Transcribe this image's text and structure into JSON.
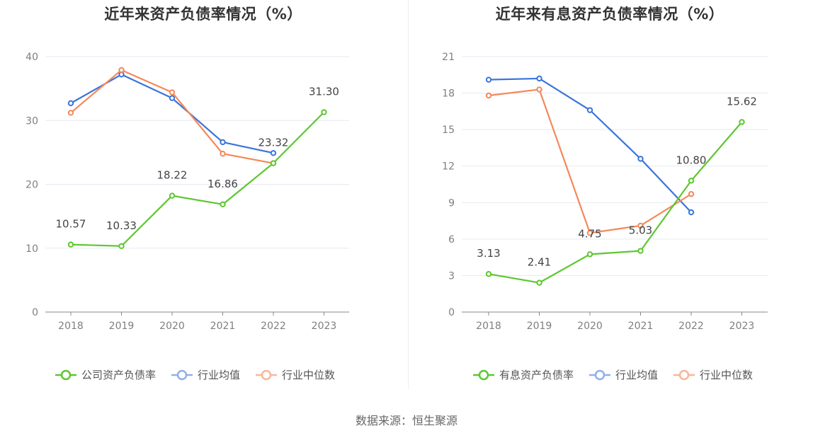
{
  "source_text": "数据来源：恒生聚源",
  "chart_data": [
    {
      "type": "line",
      "title": "近年来资产负债率情况（%）",
      "x": [
        "2018",
        "2019",
        "2020",
        "2021",
        "2022",
        "2023"
      ],
      "ylim": [
        0,
        40
      ],
      "yticks": [
        "0",
        "10",
        "20",
        "30",
        "40"
      ],
      "grid": true,
      "legend": "bottom",
      "series": [
        {
          "name": "公司资产负债率",
          "color": "#5cc72f",
          "values": [
            10.57,
            10.33,
            18.22,
            16.86,
            23.32,
            31.3
          ],
          "labels": [
            "10.57",
            "10.33",
            "18.22",
            "16.86",
            "23.32",
            "31.30"
          ]
        },
        {
          "name": "行业均值",
          "color": "#3a74da",
          "values": [
            32.7,
            37.2,
            33.5,
            26.6,
            24.9,
            null
          ]
        },
        {
          "name": "行业中位数",
          "color": "#f5885a",
          "values": [
            31.2,
            37.9,
            34.4,
            24.8,
            23.3,
            null
          ]
        }
      ]
    },
    {
      "type": "line",
      "title": "近年来有息资产负债率情况（%）",
      "x": [
        "2018",
        "2019",
        "2020",
        "2021",
        "2022",
        "2023"
      ],
      "ylim": [
        0,
        21
      ],
      "yticks": [
        "0",
        "3",
        "6",
        "9",
        "12",
        "15",
        "18",
        "21"
      ],
      "grid": true,
      "legend": "bottom",
      "series": [
        {
          "name": "有息资产负债率",
          "color": "#5cc72f",
          "values": [
            3.13,
            2.41,
            4.75,
            5.03,
            10.8,
            15.62
          ],
          "labels": [
            "3.13",
            "2.41",
            "4.75",
            "5.03",
            "10.80",
            "15.62"
          ]
        },
        {
          "name": "行业均值",
          "color": "#3a74da",
          "values": [
            19.1,
            19.2,
            16.6,
            12.6,
            8.2,
            null
          ]
        },
        {
          "name": "行业中位数",
          "color": "#f5885a",
          "values": [
            17.8,
            18.3,
            6.5,
            7.1,
            9.7,
            null
          ]
        }
      ]
    }
  ]
}
